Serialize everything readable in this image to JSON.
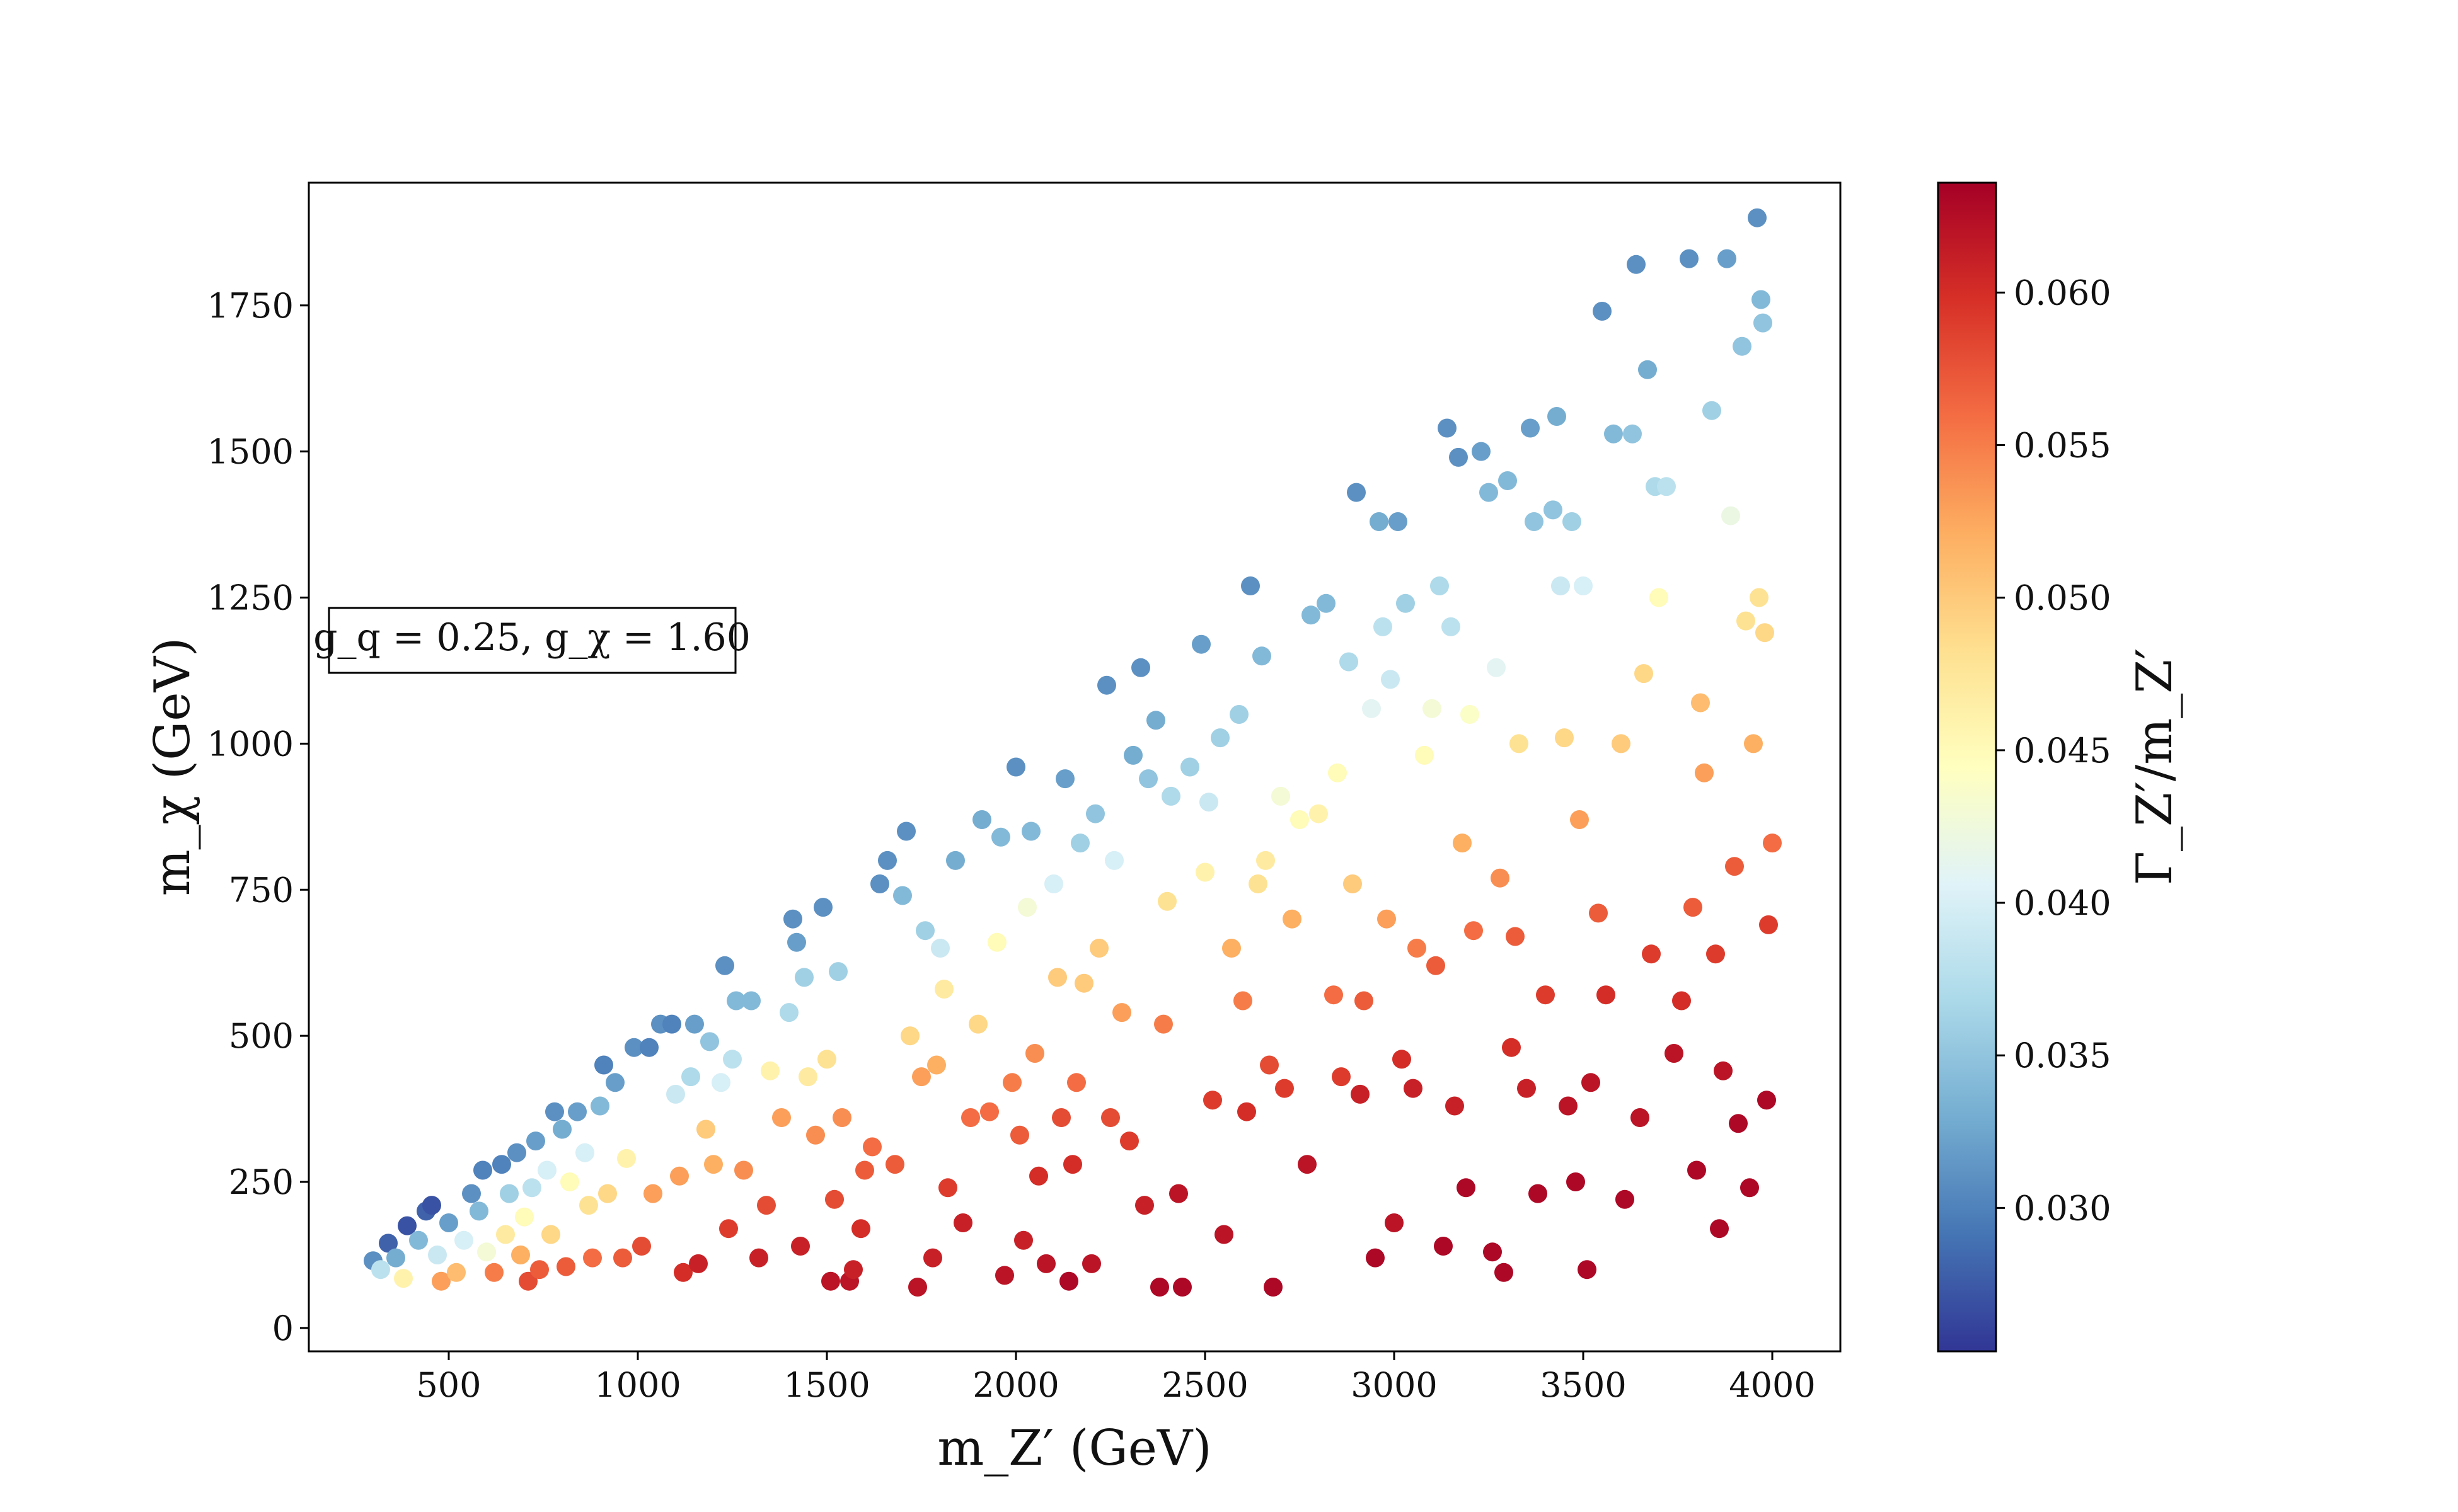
{
  "chart_data": {
    "type": "scatter",
    "title": "",
    "xlabel": "m_Z′ (GeV)",
    "ylabel": "m_χ (GeV)",
    "colorbar_label": "Γ_Z′/m_Z′",
    "annotation": "g_q = 0.25, g_χ = 1.60",
    "xlim": [
      130,
      4180
    ],
    "ylim": [
      -40,
      1960
    ],
    "xticks": [
      500,
      1000,
      1500,
      2000,
      2500,
      3000,
      3500,
      4000
    ],
    "yticks": [
      0,
      250,
      500,
      750,
      1000,
      1250,
      1500,
      1750
    ],
    "colorbar_range": [
      0.0253,
      0.0636
    ],
    "colorbar_ticks": [
      "0.030",
      "0.035",
      "0.040",
      "0.045",
      "0.050",
      "0.055",
      "0.060"
    ],
    "colormap": "RdYlBu_r",
    "grid": false,
    "points": [
      [
        300,
        115,
        0.031
      ],
      [
        320,
        100,
        0.038
      ],
      [
        340,
        145,
        0.028
      ],
      [
        360,
        120,
        0.033
      ],
      [
        380,
        85,
        0.046
      ],
      [
        390,
        175,
        0.027
      ],
      [
        420,
        150,
        0.034
      ],
      [
        440,
        200,
        0.028
      ],
      [
        455,
        210,
        0.027
      ],
      [
        470,
        125,
        0.039
      ],
      [
        480,
        80,
        0.053
      ],
      [
        500,
        180,
        0.032
      ],
      [
        520,
        95,
        0.051
      ],
      [
        540,
        150,
        0.04
      ],
      [
        560,
        230,
        0.031
      ],
      [
        580,
        200,
        0.034
      ],
      [
        590,
        270,
        0.03
      ],
      [
        600,
        130,
        0.043
      ],
      [
        620,
        95,
        0.055
      ],
      [
        640,
        280,
        0.03
      ],
      [
        650,
        160,
        0.047
      ],
      [
        660,
        230,
        0.036
      ],
      [
        680,
        300,
        0.031
      ],
      [
        690,
        125,
        0.052
      ],
      [
        700,
        190,
        0.045
      ],
      [
        710,
        80,
        0.058
      ],
      [
        720,
        240,
        0.038
      ],
      [
        730,
        320,
        0.032
      ],
      [
        740,
        100,
        0.057
      ],
      [
        760,
        270,
        0.04
      ],
      [
        770,
        160,
        0.049
      ],
      [
        780,
        370,
        0.031
      ],
      [
        800,
        340,
        0.033
      ],
      [
        810,
        105,
        0.057
      ],
      [
        820,
        250,
        0.045
      ],
      [
        840,
        370,
        0.032
      ],
      [
        860,
        300,
        0.04
      ],
      [
        870,
        210,
        0.048
      ],
      [
        880,
        120,
        0.056
      ],
      [
        900,
        380,
        0.034
      ],
      [
        910,
        450,
        0.03
      ],
      [
        920,
        230,
        0.049
      ],
      [
        940,
        420,
        0.032
      ],
      [
        960,
        120,
        0.057
      ],
      [
        970,
        290,
        0.046
      ],
      [
        990,
        480,
        0.031
      ],
      [
        1010,
        140,
        0.058
      ],
      [
        1030,
        480,
        0.03
      ],
      [
        1040,
        230,
        0.053
      ],
      [
        1060,
        520,
        0.031
      ],
      [
        1090,
        520,
        0.03
      ],
      [
        1100,
        400,
        0.039
      ],
      [
        1110,
        260,
        0.053
      ],
      [
        1120,
        95,
        0.06
      ],
      [
        1140,
        430,
        0.037
      ],
      [
        1150,
        520,
        0.032
      ],
      [
        1160,
        110,
        0.061
      ],
      [
        1180,
        340,
        0.05
      ],
      [
        1190,
        490,
        0.035
      ],
      [
        1200,
        280,
        0.052
      ],
      [
        1220,
        420,
        0.04
      ],
      [
        1230,
        620,
        0.031
      ],
      [
        1240,
        170,
        0.059
      ],
      [
        1250,
        460,
        0.038
      ],
      [
        1260,
        560,
        0.034
      ],
      [
        1280,
        270,
        0.054
      ],
      [
        1300,
        560,
        0.034
      ],
      [
        1320,
        120,
        0.061
      ],
      [
        1340,
        210,
        0.058
      ],
      [
        1350,
        440,
        0.046
      ],
      [
        1380,
        360,
        0.053
      ],
      [
        1400,
        540,
        0.037
      ],
      [
        1410,
        700,
        0.031
      ],
      [
        1420,
        660,
        0.032
      ],
      [
        1430,
        140,
        0.061
      ],
      [
        1440,
        600,
        0.036
      ],
      [
        1450,
        430,
        0.047
      ],
      [
        1470,
        330,
        0.054
      ],
      [
        1490,
        720,
        0.031
      ],
      [
        1500,
        460,
        0.048
      ],
      [
        1510,
        80,
        0.062
      ],
      [
        1520,
        220,
        0.058
      ],
      [
        1530,
        610,
        0.036
      ],
      [
        1540,
        360,
        0.054
      ],
      [
        1560,
        80,
        0.062
      ],
      [
        1570,
        100,
        0.061
      ],
      [
        1590,
        170,
        0.06
      ],
      [
        1600,
        270,
        0.057
      ],
      [
        1620,
        310,
        0.056
      ],
      [
        1640,
        760,
        0.031
      ],
      [
        1660,
        800,
        0.031
      ],
      [
        1680,
        280,
        0.057
      ],
      [
        1700,
        740,
        0.034
      ],
      [
        1710,
        850,
        0.031
      ],
      [
        1720,
        500,
        0.049
      ],
      [
        1740,
        70,
        0.062
      ],
      [
        1750,
        430,
        0.053
      ],
      [
        1760,
        680,
        0.036
      ],
      [
        1780,
        120,
        0.061
      ],
      [
        1790,
        450,
        0.052
      ],
      [
        1800,
        650,
        0.039
      ],
      [
        1810,
        580,
        0.047
      ],
      [
        1820,
        240,
        0.059
      ],
      [
        1840,
        800,
        0.033
      ],
      [
        1860,
        180,
        0.061
      ],
      [
        1880,
        360,
        0.056
      ],
      [
        1900,
        520,
        0.049
      ],
      [
        1910,
        870,
        0.033
      ],
      [
        1930,
        370,
        0.056
      ],
      [
        1950,
        660,
        0.045
      ],
      [
        1960,
        840,
        0.034
      ],
      [
        1970,
        90,
        0.062
      ],
      [
        1990,
        420,
        0.055
      ],
      [
        2000,
        960,
        0.031
      ],
      [
        2010,
        330,
        0.057
      ],
      [
        2020,
        150,
        0.061
      ],
      [
        2030,
        720,
        0.043
      ],
      [
        2040,
        850,
        0.034
      ],
      [
        2050,
        470,
        0.054
      ],
      [
        2060,
        260,
        0.06
      ],
      [
        2080,
        110,
        0.062
      ],
      [
        2100,
        760,
        0.04
      ],
      [
        2110,
        600,
        0.05
      ],
      [
        2120,
        360,
        0.058
      ],
      [
        2130,
        940,
        0.032
      ],
      [
        2140,
        80,
        0.063
      ],
      [
        2150,
        280,
        0.06
      ],
      [
        2160,
        420,
        0.056
      ],
      [
        2170,
        830,
        0.036
      ],
      [
        2180,
        590,
        0.05
      ],
      [
        2200,
        110,
        0.062
      ],
      [
        2210,
        880,
        0.035
      ],
      [
        2220,
        650,
        0.05
      ],
      [
        2240,
        1100,
        0.031
      ],
      [
        2250,
        360,
        0.058
      ],
      [
        2260,
        800,
        0.04
      ],
      [
        2280,
        540,
        0.053
      ],
      [
        2300,
        320,
        0.059
      ],
      [
        2310,
        980,
        0.033
      ],
      [
        2330,
        1130,
        0.031
      ],
      [
        2340,
        210,
        0.061
      ],
      [
        2350,
        940,
        0.035
      ],
      [
        2370,
        1040,
        0.033
      ],
      [
        2380,
        70,
        0.063
      ],
      [
        2390,
        520,
        0.055
      ],
      [
        2400,
        730,
        0.048
      ],
      [
        2410,
        910,
        0.037
      ],
      [
        2430,
        230,
        0.062
      ],
      [
        2440,
        70,
        0.063
      ],
      [
        2460,
        960,
        0.036
      ],
      [
        2490,
        1170,
        0.032
      ],
      [
        2500,
        780,
        0.046
      ],
      [
        2510,
        900,
        0.039
      ],
      [
        2520,
        390,
        0.059
      ],
      [
        2540,
        1010,
        0.036
      ],
      [
        2550,
        160,
        0.062
      ],
      [
        2570,
        650,
        0.052
      ],
      [
        2590,
        1050,
        0.036
      ],
      [
        2600,
        560,
        0.055
      ],
      [
        2610,
        370,
        0.06
      ],
      [
        2620,
        1270,
        0.031
      ],
      [
        2640,
        760,
        0.048
      ],
      [
        2650,
        1150,
        0.034
      ],
      [
        2660,
        800,
        0.047
      ],
      [
        2670,
        450,
        0.058
      ],
      [
        2680,
        70,
        0.063
      ],
      [
        2700,
        910,
        0.043
      ],
      [
        2710,
        410,
        0.059
      ],
      [
        2730,
        700,
        0.052
      ],
      [
        2750,
        870,
        0.045
      ],
      [
        2770,
        280,
        0.062
      ],
      [
        2780,
        1220,
        0.034
      ],
      [
        2800,
        880,
        0.046
      ],
      [
        2820,
        1240,
        0.034
      ],
      [
        2840,
        570,
        0.056
      ],
      [
        2850,
        950,
        0.045
      ],
      [
        2860,
        430,
        0.059
      ],
      [
        2880,
        1140,
        0.037
      ],
      [
        2890,
        760,
        0.05
      ],
      [
        2900,
        1430,
        0.031
      ],
      [
        2910,
        400,
        0.061
      ],
      [
        2920,
        560,
        0.057
      ],
      [
        2940,
        1060,
        0.041
      ],
      [
        2950,
        120,
        0.063
      ],
      [
        2960,
        1380,
        0.033
      ],
      [
        2970,
        1200,
        0.038
      ],
      [
        2980,
        700,
        0.053
      ],
      [
        2990,
        1110,
        0.039
      ],
      [
        3000,
        180,
        0.062
      ],
      [
        3010,
        1380,
        0.032
      ],
      [
        3020,
        460,
        0.06
      ],
      [
        3030,
        1240,
        0.036
      ],
      [
        3050,
        410,
        0.061
      ],
      [
        3060,
        650,
        0.055
      ],
      [
        3080,
        980,
        0.045
      ],
      [
        3100,
        1060,
        0.043
      ],
      [
        3110,
        620,
        0.057
      ],
      [
        3120,
        1270,
        0.037
      ],
      [
        3130,
        140,
        0.063
      ],
      [
        3140,
        1540,
        0.031
      ],
      [
        3150,
        1200,
        0.038
      ],
      [
        3160,
        380,
        0.061
      ],
      [
        3170,
        1490,
        0.031
      ],
      [
        3180,
        830,
        0.052
      ],
      [
        3190,
        240,
        0.063
      ],
      [
        3200,
        1050,
        0.044
      ],
      [
        3210,
        680,
        0.056
      ],
      [
        3230,
        1500,
        0.032
      ],
      [
        3250,
        1430,
        0.034
      ],
      [
        3260,
        130,
        0.063
      ],
      [
        3270,
        1130,
        0.041
      ],
      [
        3280,
        770,
        0.054
      ],
      [
        3290,
        95,
        0.063
      ],
      [
        3300,
        1450,
        0.034
      ],
      [
        3310,
        480,
        0.06
      ],
      [
        3320,
        670,
        0.057
      ],
      [
        3330,
        1000,
        0.048
      ],
      [
        3350,
        410,
        0.061
      ],
      [
        3360,
        1540,
        0.032
      ],
      [
        3370,
        1380,
        0.035
      ],
      [
        3380,
        230,
        0.063
      ],
      [
        3400,
        570,
        0.059
      ],
      [
        3420,
        1400,
        0.035
      ],
      [
        3430,
        1560,
        0.033
      ],
      [
        3440,
        1270,
        0.039
      ],
      [
        3450,
        1010,
        0.049
      ],
      [
        3460,
        380,
        0.062
      ],
      [
        3470,
        1380,
        0.036
      ],
      [
        3480,
        250,
        0.063
      ],
      [
        3490,
        870,
        0.053
      ],
      [
        3500,
        1270,
        0.04
      ],
      [
        3510,
        100,
        0.063
      ],
      [
        3520,
        420,
        0.062
      ],
      [
        3540,
        710,
        0.057
      ],
      [
        3550,
        1740,
        0.031
      ],
      [
        3560,
        570,
        0.06
      ],
      [
        3580,
        1530,
        0.034
      ],
      [
        3600,
        1000,
        0.05
      ],
      [
        3610,
        220,
        0.063
      ],
      [
        3630,
        1530,
        0.035
      ],
      [
        3640,
        1820,
        0.031
      ],
      [
        3650,
        360,
        0.062
      ],
      [
        3660,
        1120,
        0.049
      ],
      [
        3670,
        1640,
        0.033
      ],
      [
        3680,
        640,
        0.059
      ],
      [
        3690,
        1440,
        0.037
      ],
      [
        3700,
        1250,
        0.045
      ],
      [
        3720,
        1440,
        0.038
      ],
      [
        3740,
        470,
        0.062
      ],
      [
        3760,
        560,
        0.06
      ],
      [
        3780,
        1830,
        0.031
      ],
      [
        3790,
        720,
        0.057
      ],
      [
        3800,
        270,
        0.063
      ],
      [
        3810,
        1070,
        0.051
      ],
      [
        3820,
        950,
        0.053
      ],
      [
        3840,
        1570,
        0.036
      ],
      [
        3850,
        640,
        0.059
      ],
      [
        3860,
        170,
        0.063
      ],
      [
        3870,
        440,
        0.062
      ],
      [
        3880,
        1830,
        0.032
      ],
      [
        3890,
        1390,
        0.042
      ],
      [
        3900,
        790,
        0.057
      ],
      [
        3910,
        350,
        0.063
      ],
      [
        3920,
        1680,
        0.035
      ],
      [
        3930,
        1210,
        0.048
      ],
      [
        3940,
        240,
        0.063
      ],
      [
        3950,
        1000,
        0.052
      ],
      [
        3960,
        1900,
        0.031
      ],
      [
        3965,
        1250,
        0.048
      ],
      [
        3970,
        1760,
        0.034
      ],
      [
        3975,
        1720,
        0.035
      ],
      [
        3980,
        1190,
        0.049
      ],
      [
        3985,
        390,
        0.063
      ],
      [
        3990,
        690,
        0.059
      ],
      [
        4000,
        830,
        0.056
      ]
    ]
  }
}
